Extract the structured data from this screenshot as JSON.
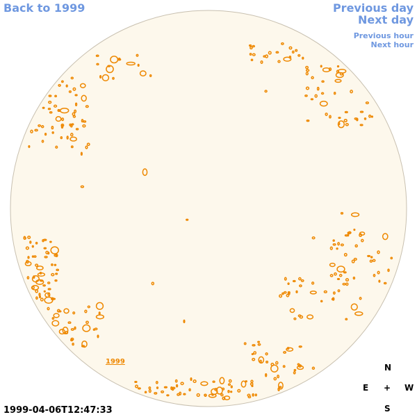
{
  "nav": {
    "back": "Back to 1999",
    "previous_day": "Previous day",
    "next_day": "Next day",
    "previous_hour": "Previous hour",
    "next_hour": "Next hour"
  },
  "compass": {
    "north": "N",
    "south": "S",
    "east": "E",
    "west": "W",
    "center": "+"
  },
  "timestamp": "1999-04-06T12:47:33",
  "year_label": "1999",
  "colors": {
    "link": "#6f98e0",
    "disk_fill": "#fdf8ec",
    "contour": "#ee8800",
    "disk_edge": "#c8c0b0"
  }
}
